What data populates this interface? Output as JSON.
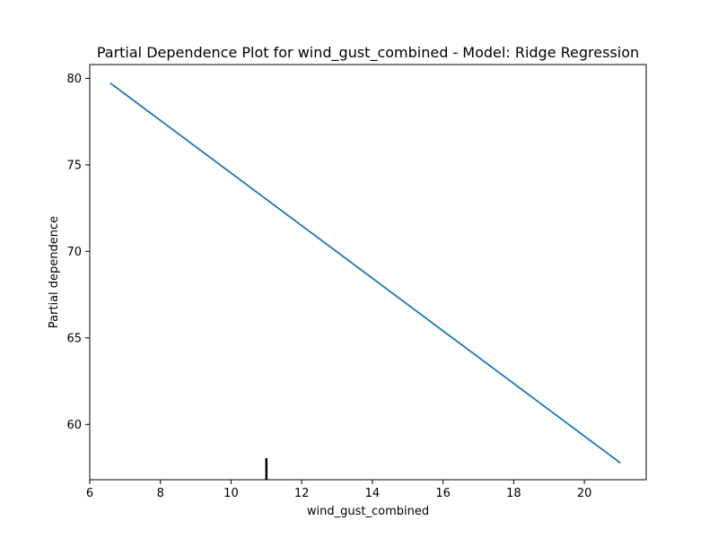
{
  "chart_data": {
    "type": "line",
    "title": "Partial Dependence Plot for wind_gust_combined - Model: Ridge Regression",
    "xlabel": "wind_gust_combined",
    "ylabel": "Partial dependence",
    "xlim": [
      6.0,
      21.75
    ],
    "ylim": [
      56.8,
      80.8
    ],
    "xticks": [
      6,
      8,
      10,
      12,
      14,
      16,
      18,
      20
    ],
    "yticks": [
      60,
      65,
      70,
      75,
      80
    ],
    "xtick_labels": [
      "6",
      "8",
      "10",
      "12",
      "14",
      "16",
      "18",
      "20"
    ],
    "ytick_labels": [
      "60",
      "65",
      "70",
      "75",
      "80"
    ],
    "grid": false,
    "series": [
      {
        "x": [
          6.6,
          21.0
        ],
        "y": [
          79.7,
          57.8
        ],
        "color": "#1f77b4"
      }
    ],
    "rug": {
      "x": [
        11.0
      ],
      "color": "#000000"
    }
  }
}
